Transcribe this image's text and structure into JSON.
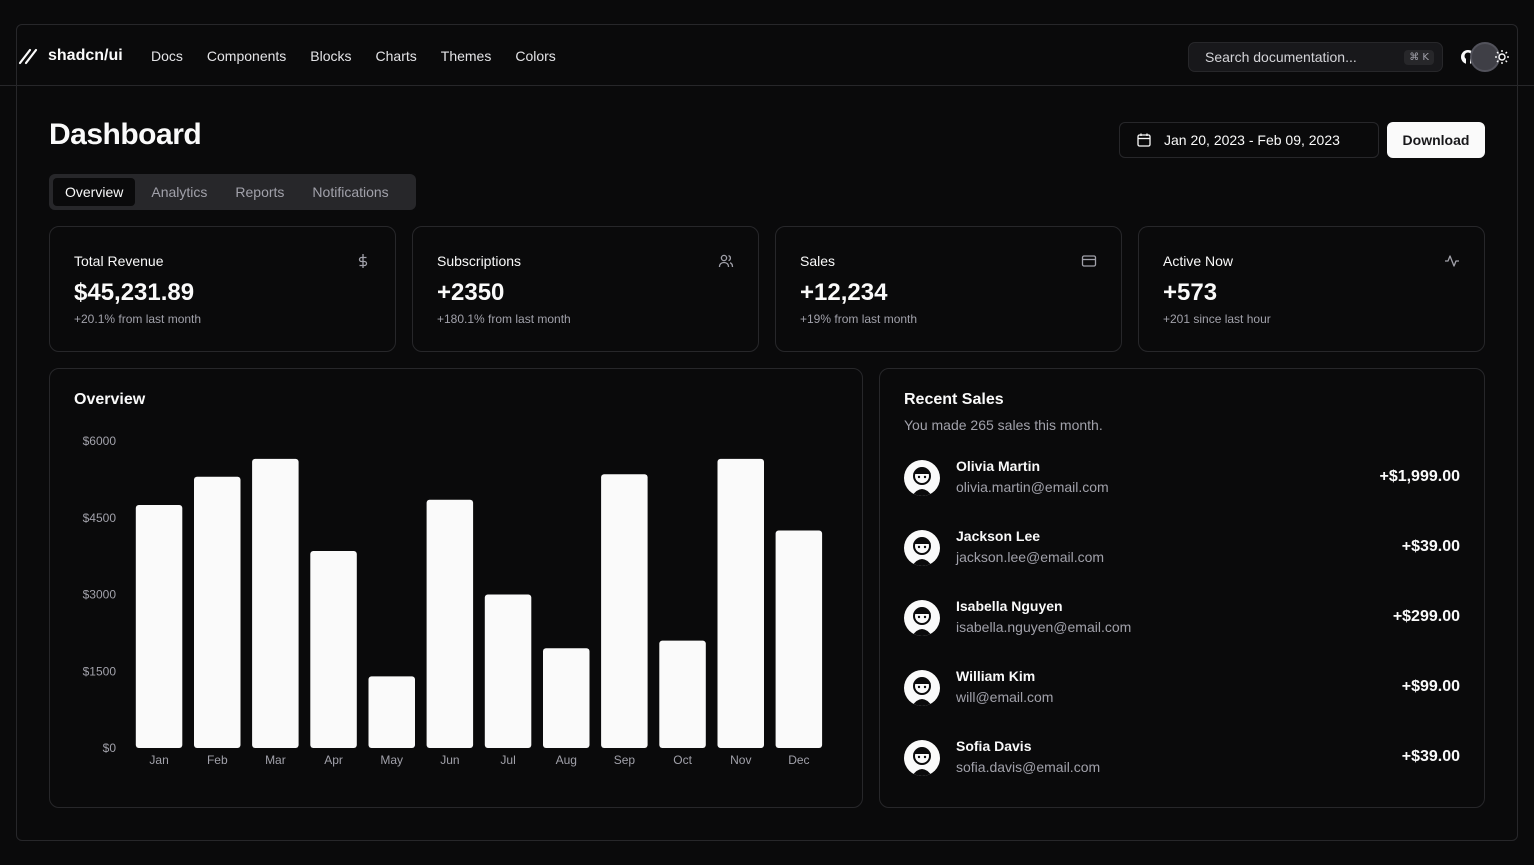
{
  "header": {
    "brand": "shadcn/ui",
    "nav": [
      "Docs",
      "Components",
      "Blocks",
      "Charts",
      "Themes",
      "Colors"
    ],
    "search_placeholder": "Search documentation...",
    "search_shortcut": "⌘ K"
  },
  "page": {
    "title": "Dashboard",
    "date_range": "Jan 20, 2023 - Feb 09, 2023",
    "download_label": "Download",
    "tabs": [
      "Overview",
      "Analytics",
      "Reports",
      "Notifications"
    ],
    "active_tab": "Overview"
  },
  "stats": [
    {
      "title": "Total Revenue",
      "value": "$45,231.89",
      "sub": "+20.1% from last month",
      "icon": "dollar-icon"
    },
    {
      "title": "Subscriptions",
      "value": "+2350",
      "sub": "+180.1% from last month",
      "icon": "users-icon"
    },
    {
      "title": "Sales",
      "value": "+12,234",
      "sub": "+19% from last month",
      "icon": "credit-card-icon"
    },
    {
      "title": "Active Now",
      "value": "+573",
      "sub": "+201 since last hour",
      "icon": "activity-icon"
    }
  ],
  "overview": {
    "title": "Overview"
  },
  "chart_data": {
    "type": "bar",
    "categories": [
      "Jan",
      "Feb",
      "Mar",
      "Apr",
      "May",
      "Jun",
      "Jul",
      "Aug",
      "Sep",
      "Oct",
      "Nov",
      "Dec"
    ],
    "values": [
      4750,
      5300,
      5650,
      3850,
      1400,
      4850,
      3000,
      1950,
      5350,
      2100,
      5650,
      4250
    ],
    "yticks": [
      "$0",
      "$1500",
      "$3000",
      "$4500",
      "$6000"
    ],
    "ylim": [
      0,
      6000
    ],
    "color": "#fafafa",
    "grid": false
  },
  "recent_sales": {
    "title": "Recent Sales",
    "description": "You made 265 sales this month.",
    "items": [
      {
        "name": "Olivia Martin",
        "email": "olivia.martin@email.com",
        "amount": "+$1,999.00"
      },
      {
        "name": "Jackson Lee",
        "email": "jackson.lee@email.com",
        "amount": "+$39.00"
      },
      {
        "name": "Isabella Nguyen",
        "email": "isabella.nguyen@email.com",
        "amount": "+$299.00"
      },
      {
        "name": "William Kim",
        "email": "will@email.com",
        "amount": "+$99.00"
      },
      {
        "name": "Sofia Davis",
        "email": "sofia.davis@email.com",
        "amount": "+$39.00"
      }
    ]
  }
}
